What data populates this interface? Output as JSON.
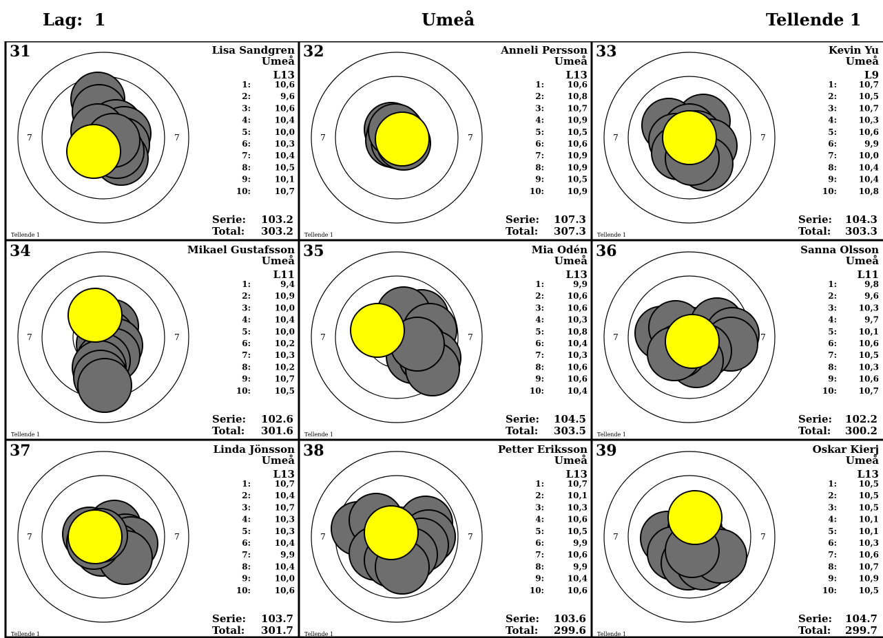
{
  "header": {
    "lag_label": "Lag:",
    "lag_value": "1",
    "club": "Umeå",
    "group": "Tellende 1"
  },
  "colors": {
    "hit_fill": "#6e6e6e",
    "last_hit_fill": "#ffff00",
    "ring_stroke": "#000000"
  },
  "ring_label": "7",
  "series_label": "Serie:",
  "total_label": "Total:",
  "footer_label": "Tellende 1",
  "targets": [
    {
      "number": "31",
      "name": "Lisa Sandgren",
      "club": "Umeå",
      "lane": "L13",
      "shots": [
        {
          "n": "1:",
          "v": "10,6"
        },
        {
          "n": "2:",
          "v": "9,6"
        },
        {
          "n": "3:",
          "v": "10,6"
        },
        {
          "n": "4:",
          "v": "10,4"
        },
        {
          "n": "5:",
          "v": "10,0"
        },
        {
          "n": "6:",
          "v": "10,3"
        },
        {
          "n": "7:",
          "v": "10,4"
        },
        {
          "n": "8:",
          "v": "10,5"
        },
        {
          "n": "9:",
          "v": "10,1"
        },
        {
          "n": "10:",
          "v": "10,7"
        }
      ],
      "serie": "103.2",
      "total": "303.2"
    },
    {
      "number": "32",
      "name": "Anneli Persson",
      "club": "Umeå",
      "lane": "L13",
      "shots": [
        {
          "n": "1:",
          "v": "10,6"
        },
        {
          "n": "2:",
          "v": "10,8"
        },
        {
          "n": "3:",
          "v": "10,7"
        },
        {
          "n": "4:",
          "v": "10,9"
        },
        {
          "n": "5:",
          "v": "10,5"
        },
        {
          "n": "6:",
          "v": "10,6"
        },
        {
          "n": "7:",
          "v": "10,9"
        },
        {
          "n": "8:",
          "v": "10,9"
        },
        {
          "n": "9:",
          "v": "10,5"
        },
        {
          "n": "10:",
          "v": "10,9"
        }
      ],
      "serie": "107.3",
      "total": "307.3"
    },
    {
      "number": "33",
      "name": "Kevin Yu",
      "club": "Umeå",
      "lane": "L9",
      "shots": [
        {
          "n": "1:",
          "v": "10,7"
        },
        {
          "n": "2:",
          "v": "10,5"
        },
        {
          "n": "3:",
          "v": "10,7"
        },
        {
          "n": "4:",
          "v": "10,3"
        },
        {
          "n": "5:",
          "v": "10,6"
        },
        {
          "n": "6:",
          "v": "9,9"
        },
        {
          "n": "7:",
          "v": "10,0"
        },
        {
          "n": "8:",
          "v": "10,4"
        },
        {
          "n": "9:",
          "v": "10,4"
        },
        {
          "n": "10:",
          "v": "10,8"
        }
      ],
      "serie": "104.3",
      "total": "303.3"
    },
    {
      "number": "34",
      "name": "Mikael Gustafsson",
      "club": "Umeå",
      "lane": "L11",
      "shots": [
        {
          "n": "1:",
          "v": "9,4"
        },
        {
          "n": "2:",
          "v": "10,9"
        },
        {
          "n": "3:",
          "v": "10,0"
        },
        {
          "n": "4:",
          "v": "10,4"
        },
        {
          "n": "5:",
          "v": "10,0"
        },
        {
          "n": "6:",
          "v": "10,2"
        },
        {
          "n": "7:",
          "v": "10,3"
        },
        {
          "n": "8:",
          "v": "10,2"
        },
        {
          "n": "9:",
          "v": "10,7"
        },
        {
          "n": "10:",
          "v": "10,5"
        }
      ],
      "serie": "102.6",
      "total": "301.6"
    },
    {
      "number": "35",
      "name": "Mia Odén",
      "club": "Umeå",
      "lane": "L13",
      "shots": [
        {
          "n": "1:",
          "v": "9,9"
        },
        {
          "n": "2:",
          "v": "10,6"
        },
        {
          "n": "3:",
          "v": "10,6"
        },
        {
          "n": "4:",
          "v": "10,3"
        },
        {
          "n": "5:",
          "v": "10,8"
        },
        {
          "n": "6:",
          "v": "10,4"
        },
        {
          "n": "7:",
          "v": "10,3"
        },
        {
          "n": "8:",
          "v": "10,6"
        },
        {
          "n": "9:",
          "v": "10,6"
        },
        {
          "n": "10:",
          "v": "10,4"
        }
      ],
      "serie": "104.5",
      "total": "303.5"
    },
    {
      "number": "36",
      "name": "Sanna Olsson",
      "club": "Umeå",
      "lane": "L11",
      "shots": [
        {
          "n": "1:",
          "v": "9,8"
        },
        {
          "n": "2:",
          "v": "9,6"
        },
        {
          "n": "3:",
          "v": "10,3"
        },
        {
          "n": "4:",
          "v": "9,7"
        },
        {
          "n": "5:",
          "v": "10,1"
        },
        {
          "n": "6:",
          "v": "10,6"
        },
        {
          "n": "7:",
          "v": "10,5"
        },
        {
          "n": "8:",
          "v": "10,3"
        },
        {
          "n": "9:",
          "v": "10,6"
        },
        {
          "n": "10:",
          "v": "10,7"
        }
      ],
      "serie": "102.2",
      "total": "300.2"
    },
    {
      "number": "37",
      "name": "Linda Jönsson",
      "club": "Umeå",
      "lane": "L13",
      "shots": [
        {
          "n": "1:",
          "v": "10,7"
        },
        {
          "n": "2:",
          "v": "10,4"
        },
        {
          "n": "3:",
          "v": "10,7"
        },
        {
          "n": "4:",
          "v": "10,3"
        },
        {
          "n": "5:",
          "v": "10,3"
        },
        {
          "n": "6:",
          "v": "10,4"
        },
        {
          "n": "7:",
          "v": "9,9"
        },
        {
          "n": "8:",
          "v": "10,4"
        },
        {
          "n": "9:",
          "v": "10,0"
        },
        {
          "n": "10:",
          "v": "10,6"
        }
      ],
      "serie": "103.7",
      "total": "301.7"
    },
    {
      "number": "38",
      "name": "Petter Eriksson",
      "club": "Umeå",
      "lane": "L13",
      "shots": [
        {
          "n": "1:",
          "v": "10,7"
        },
        {
          "n": "2:",
          "v": "10,1"
        },
        {
          "n": "3:",
          "v": "10,3"
        },
        {
          "n": "4:",
          "v": "10,6"
        },
        {
          "n": "5:",
          "v": "10,5"
        },
        {
          "n": "6:",
          "v": "9,9"
        },
        {
          "n": "7:",
          "v": "10,6"
        },
        {
          "n": "8:",
          "v": "9,9"
        },
        {
          "n": "9:",
          "v": "10,4"
        },
        {
          "n": "10:",
          "v": "10,6"
        }
      ],
      "serie": "103.6",
      "total": "299.6"
    },
    {
      "number": "39",
      "name": "Oskar Kierj",
      "club": "Umeå",
      "lane": "L13",
      "shots": [
        {
          "n": "1:",
          "v": "10,5"
        },
        {
          "n": "2:",
          "v": "10,5"
        },
        {
          "n": "3:",
          "v": "10,5"
        },
        {
          "n": "4:",
          "v": "10,1"
        },
        {
          "n": "5:",
          "v": "10,1"
        },
        {
          "n": "6:",
          "v": "10,3"
        },
        {
          "n": "7:",
          "v": "10,6"
        },
        {
          "n": "8:",
          "v": "10,7"
        },
        {
          "n": "9:",
          "v": "10,9"
        },
        {
          "n": "10:",
          "v": "10,5"
        }
      ],
      "serie": "104.7",
      "total": "299.7"
    }
  ]
}
